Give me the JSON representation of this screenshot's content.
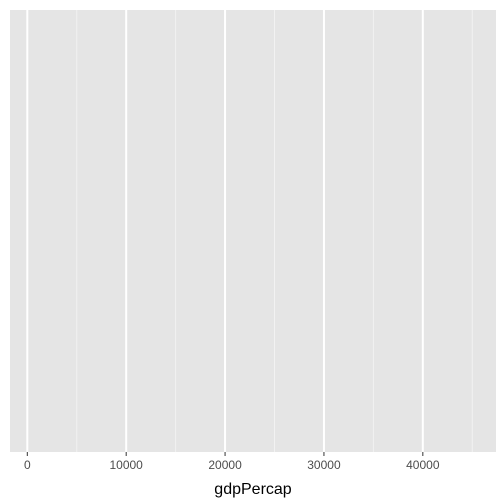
{
  "chart_data": {
    "type": "scatter",
    "title": "",
    "xlabel": "gdpPercap",
    "ylabel": "",
    "xlim": [
      -1750,
      47400
    ],
    "x_major_ticks": [
      0,
      10000,
      20000,
      30000,
      40000
    ],
    "x_tick_labels": [
      "0",
      "10000",
      "20000",
      "30000",
      "40000"
    ],
    "x_minor_ticks": [
      5000,
      15000,
      25000,
      35000,
      45000
    ],
    "grid": true,
    "y_axis_shown": false,
    "series": [],
    "colors": {
      "panel_background": "#e5e5e5",
      "major_gridline": "#ffffff",
      "minor_gridline": "#f2f2f2",
      "tick_mark": "#333333",
      "tick_label": "#4d4d4d",
      "axis_title": "#000000"
    }
  }
}
